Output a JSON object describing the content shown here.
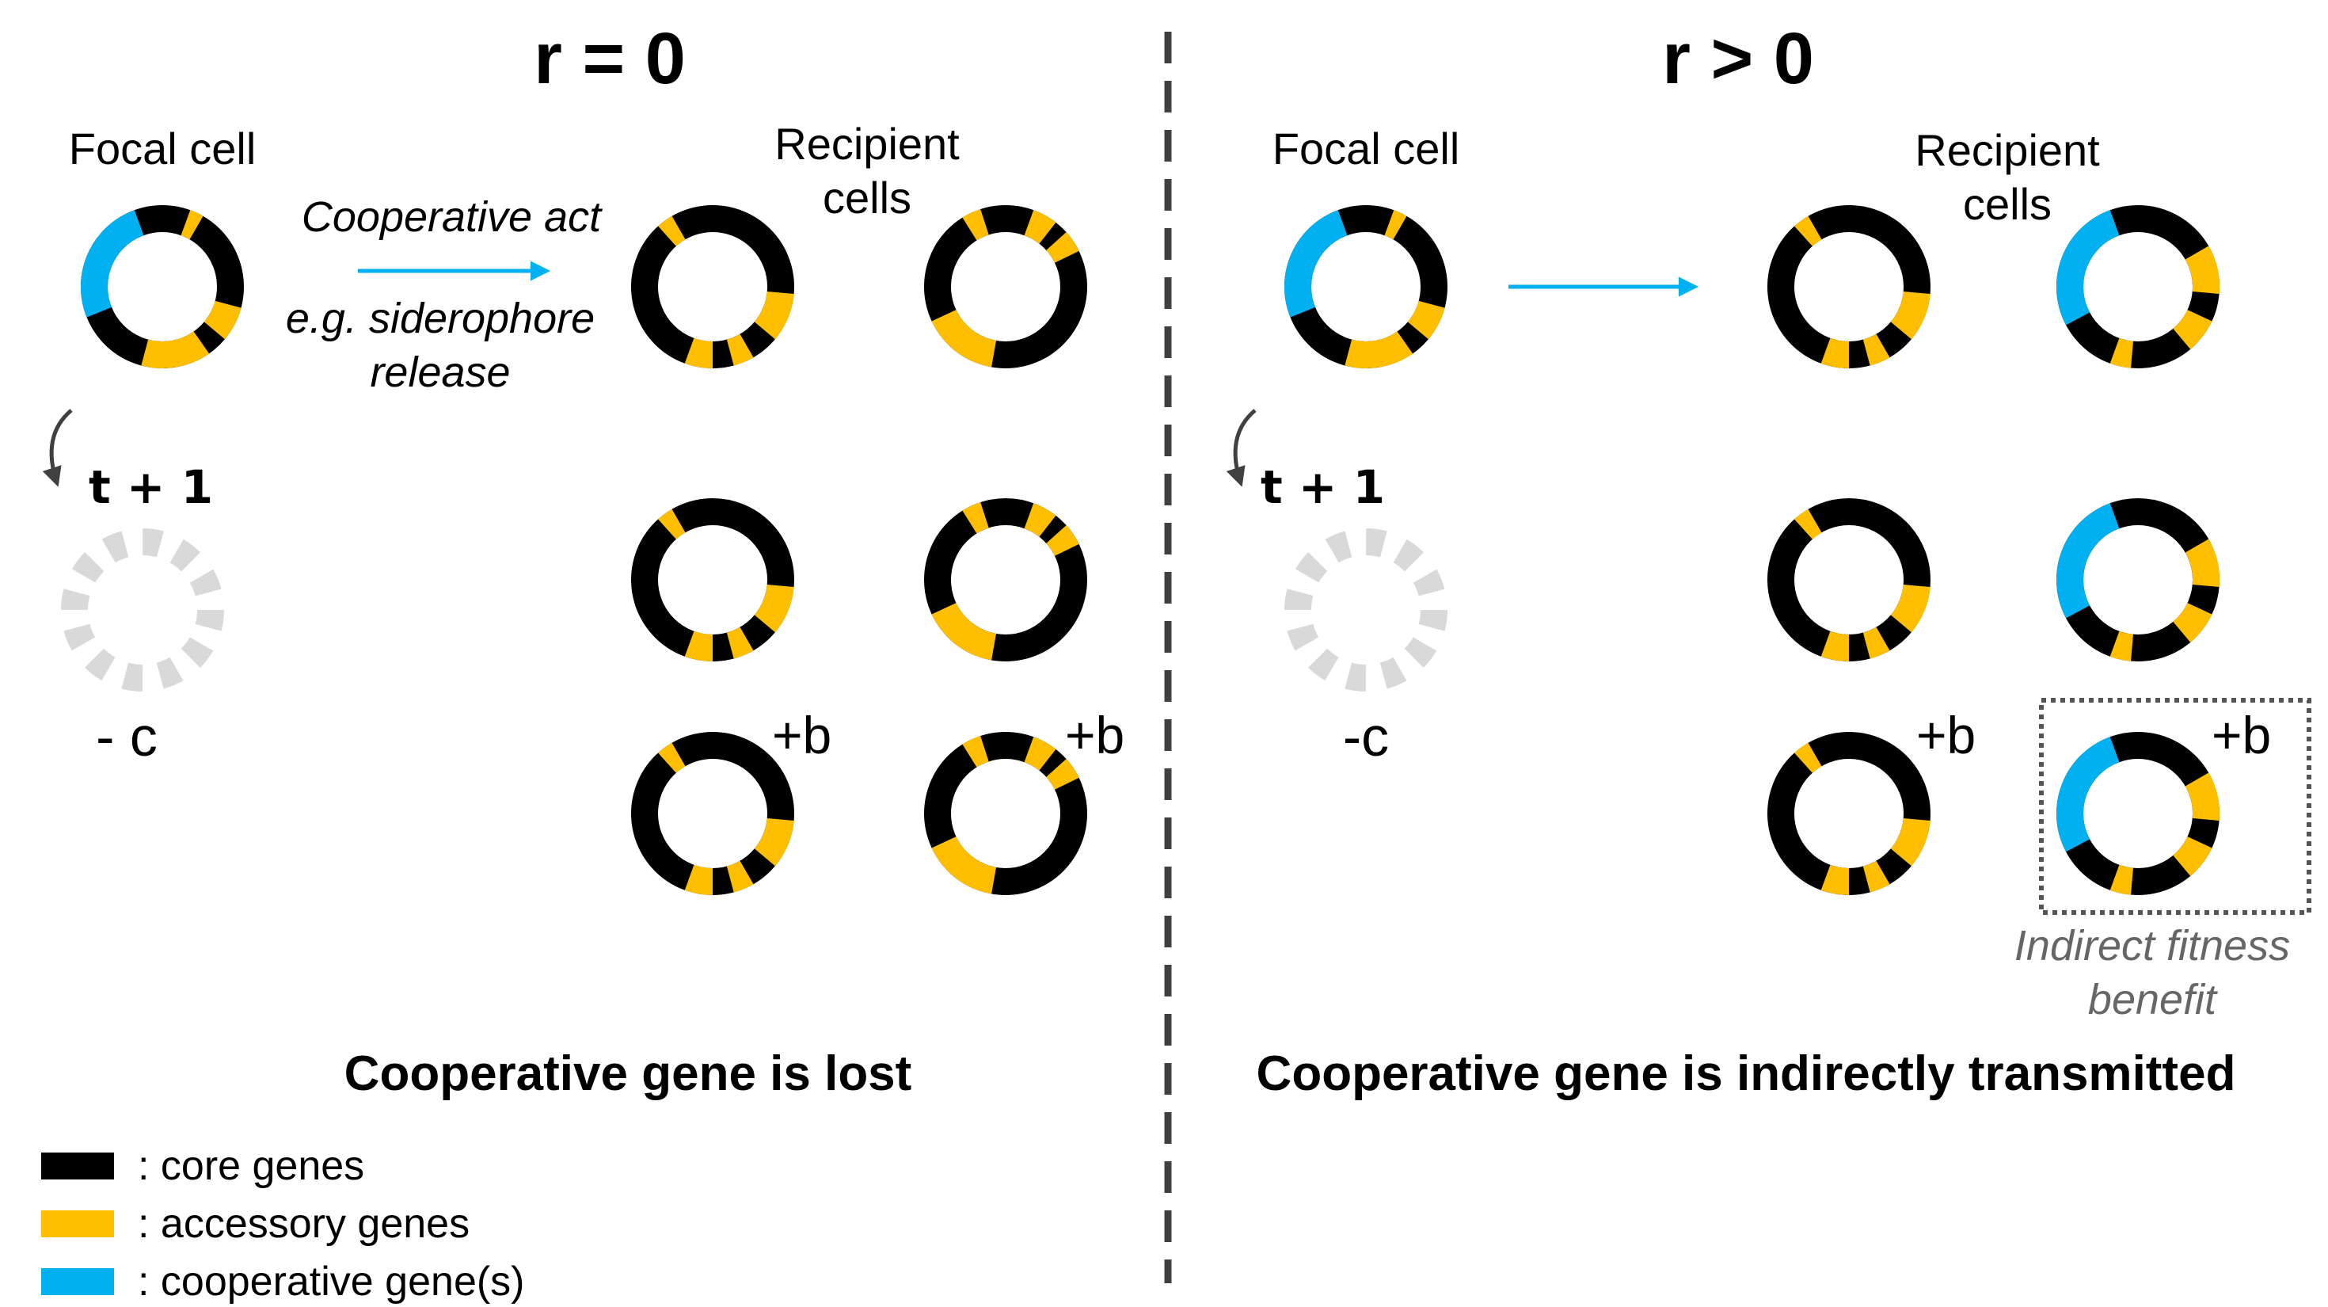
{
  "colors": {
    "core": "#000000",
    "accessory": "#FFBF00",
    "cooperative": "#00B0F0",
    "lost_cell": "#D9D9D9",
    "divider": "#404040",
    "note": "#666666"
  },
  "left_panel": {
    "title": "r = 0",
    "focal_label": "Focal cell",
    "recipient_label_line1": "Recipient",
    "recipient_label_line2": "cells",
    "act_line1": "Cooperative act",
    "act_line2": "e.g. siderophore",
    "act_line3": "release",
    "time_label": "t + 1",
    "cost_label": "- c",
    "benefit_label_1": "+b",
    "benefit_label_2": "+b",
    "conclusion": "Cooperative gene is lost"
  },
  "right_panel": {
    "title": "r > 0",
    "focal_label": "Focal cell",
    "recipient_label_line1": "Recipient",
    "recipient_label_line2": "cells",
    "time_label": "t + 1",
    "cost_label": "-c",
    "benefit_label_1": "+b",
    "benefit_label_2": "+b",
    "note_line1": "Indirect fitness",
    "note_line2": "benefit",
    "conclusion": "Cooperative gene is indirectly transmitted"
  },
  "legend": [
    {
      "key": "core",
      "label": ": core genes"
    },
    {
      "key": "accessory",
      "label": ": accessory genes"
    },
    {
      "key": "cooperative",
      "label": ": cooperative gene(s)"
    }
  ]
}
